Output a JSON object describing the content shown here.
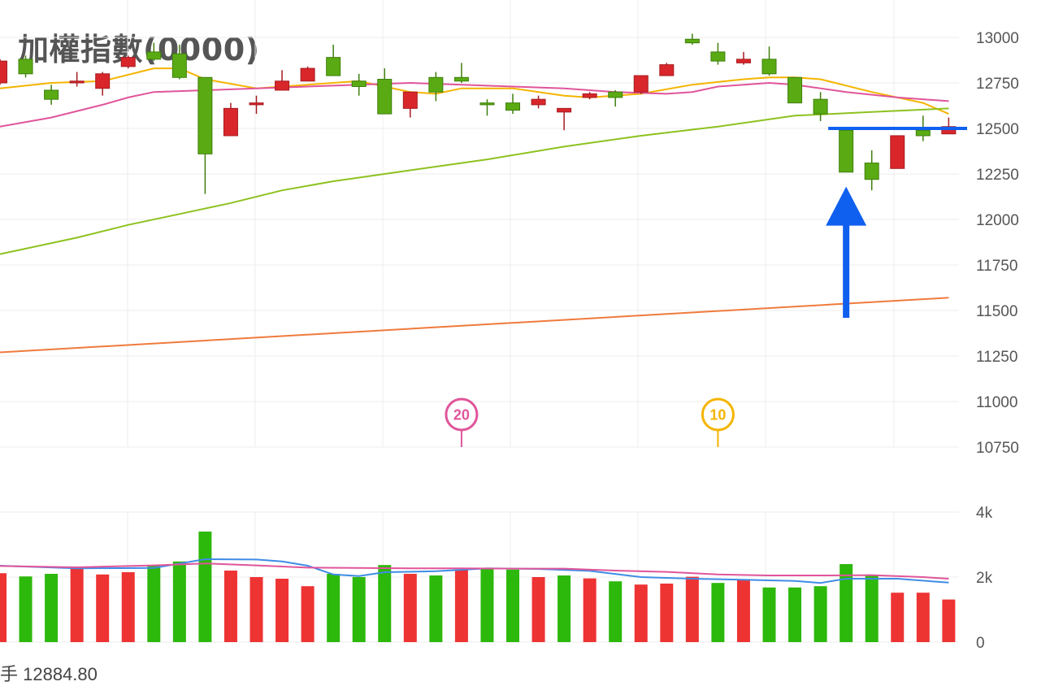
{
  "title": "加權指數(0000)",
  "footer_partial_label": "手 12884.80",
  "colors": {
    "up": "#d9262b",
    "down": "#5aab13",
    "vol_up": "#ee3333",
    "vol_down": "#2db80c",
    "ma_yellow": "#f4b400",
    "ma_pink": "#e0559a",
    "ma_green": "#8dc21f",
    "ma_orange": "#f07a3c",
    "vol_ma_blue": "#3f8ce6",
    "vol_ma_pink": "#e0559a",
    "annotation": "#1060f0",
    "grid": "#ececec",
    "tick": "#555555"
  },
  "chart_data": [
    {
      "type": "candlestick",
      "title": "加權指數(0000)",
      "ylim": [
        10750,
        13000
      ],
      "yticks": [
        "13000",
        "12750",
        "12500",
        "12250",
        "12000",
        "11750",
        "11500",
        "11250",
        "11000",
        "10750"
      ],
      "grid": true,
      "candles": [
        {
          "o": 12750,
          "h": 12880,
          "l": 12740,
          "c": 12870,
          "dir": "up"
        },
        {
          "o": 12880,
          "h": 12900,
          "l": 12780,
          "c": 12800,
          "dir": "down"
        },
        {
          "o": 12710,
          "h": 12740,
          "l": 12630,
          "c": 12660,
          "dir": "down"
        },
        {
          "o": 12750,
          "h": 12810,
          "l": 12730,
          "c": 12760,
          "dir": "up"
        },
        {
          "o": 12720,
          "h": 12810,
          "l": 12680,
          "c": 12800,
          "dir": "up"
        },
        {
          "o": 12840,
          "h": 12900,
          "l": 12830,
          "c": 12890,
          "dir": "up"
        },
        {
          "o": 12920,
          "h": 12970,
          "l": 12870,
          "c": 12880,
          "dir": "down"
        },
        {
          "o": 12910,
          "h": 12960,
          "l": 12770,
          "c": 12780,
          "dir": "down"
        },
        {
          "o": 12780,
          "h": 12780,
          "l": 12140,
          "c": 12360,
          "dir": "down"
        },
        {
          "o": 12460,
          "h": 12640,
          "l": 12460,
          "c": 12610,
          "dir": "up"
        },
        {
          "o": 12630,
          "h": 12680,
          "l": 12580,
          "c": 12640,
          "dir": "up"
        },
        {
          "o": 12710,
          "h": 12820,
          "l": 12710,
          "c": 12760,
          "dir": "up"
        },
        {
          "o": 12760,
          "h": 12840,
          "l": 12760,
          "c": 12830,
          "dir": "up"
        },
        {
          "o": 12890,
          "h": 12960,
          "l": 12790,
          "c": 12790,
          "dir": "down"
        },
        {
          "o": 12760,
          "h": 12800,
          "l": 12680,
          "c": 12730,
          "dir": "down"
        },
        {
          "o": 12770,
          "h": 12830,
          "l": 12580,
          "c": 12580,
          "dir": "down"
        },
        {
          "o": 12610,
          "h": 12700,
          "l": 12560,
          "c": 12700,
          "dir": "up"
        },
        {
          "o": 12780,
          "h": 12810,
          "l": 12650,
          "c": 12700,
          "dir": "down"
        },
        {
          "o": 12780,
          "h": 12860,
          "l": 12750,
          "c": 12760,
          "dir": "down"
        },
        {
          "o": 12640,
          "h": 12660,
          "l": 12570,
          "c": 12630,
          "dir": "down"
        },
        {
          "o": 12640,
          "h": 12690,
          "l": 12580,
          "c": 12600,
          "dir": "down"
        },
        {
          "o": 12630,
          "h": 12680,
          "l": 12610,
          "c": 12660,
          "dir": "up"
        },
        {
          "o": 12590,
          "h": 12610,
          "l": 12490,
          "c": 12610,
          "dir": "up"
        },
        {
          "o": 12670,
          "h": 12700,
          "l": 12660,
          "c": 12690,
          "dir": "up"
        },
        {
          "o": 12700,
          "h": 12710,
          "l": 12620,
          "c": 12670,
          "dir": "down"
        },
        {
          "o": 12700,
          "h": 12790,
          "l": 12690,
          "c": 12790,
          "dir": "up"
        },
        {
          "o": 12790,
          "h": 12860,
          "l": 12790,
          "c": 12850,
          "dir": "up"
        },
        {
          "o": 12990,
          "h": 13020,
          "l": 12960,
          "c": 12970,
          "dir": "down"
        },
        {
          "o": 12920,
          "h": 12970,
          "l": 12850,
          "c": 12870,
          "dir": "down"
        },
        {
          "o": 12860,
          "h": 12920,
          "l": 12850,
          "c": 12880,
          "dir": "up"
        },
        {
          "o": 12880,
          "h": 12950,
          "l": 12790,
          "c": 12800,
          "dir": "down"
        },
        {
          "o": 12780,
          "h": 12780,
          "l": 12640,
          "c": 12640,
          "dir": "down"
        },
        {
          "o": 12660,
          "h": 12700,
          "l": 12540,
          "c": 12580,
          "dir": "down"
        },
        {
          "o": 12490,
          "h": 12490,
          "l": 12260,
          "c": 12260,
          "dir": "down"
        },
        {
          "o": 12310,
          "h": 12380,
          "l": 12160,
          "c": 12220,
          "dir": "down"
        },
        {
          "o": 12280,
          "h": 12460,
          "l": 12280,
          "c": 12460,
          "dir": "up"
        },
        {
          "o": 12460,
          "h": 12570,
          "l": 12430,
          "c": 12490,
          "dir": "down"
        },
        {
          "o": 12470,
          "h": 12560,
          "l": 12470,
          "c": 12510,
          "dir": "up"
        }
      ],
      "moving_averages": [
        {
          "color_key": "ma_yellow",
          "points": [
            [
              0,
              12720
            ],
            [
              2,
              12750
            ],
            [
              4,
              12760
            ],
            [
              6,
              12830
            ],
            [
              7,
              12830
            ],
            [
              8,
              12770
            ],
            [
              10,
              12720
            ],
            [
              12,
              12740
            ],
            [
              14,
              12760
            ],
            [
              16,
              12700
            ],
            [
              17,
              12690
            ],
            [
              18,
              12720
            ],
            [
              20,
              12720
            ],
            [
              22,
              12680
            ],
            [
              23,
              12670
            ],
            [
              25,
              12690
            ],
            [
              27,
              12740
            ],
            [
              29,
              12770
            ],
            [
              30,
              12780
            ],
            [
              31,
              12780
            ],
            [
              32,
              12770
            ],
            [
              34,
              12700
            ],
            [
              36,
              12640
            ],
            [
              37,
              12580
            ]
          ]
        },
        {
          "color_key": "ma_pink",
          "points": [
            [
              0,
              12510
            ],
            [
              2,
              12560
            ],
            [
              4,
              12630
            ],
            [
              5,
              12670
            ],
            [
              6,
              12700
            ],
            [
              8,
              12710
            ],
            [
              10,
              12720
            ],
            [
              12,
              12730
            ],
            [
              14,
              12740
            ],
            [
              16,
              12750
            ],
            [
              18,
              12740
            ],
            [
              20,
              12730
            ],
            [
              22,
              12720
            ],
            [
              24,
              12700
            ],
            [
              26,
              12690
            ],
            [
              27,
              12700
            ],
            [
              28,
              12730
            ],
            [
              30,
              12750
            ],
            [
              31,
              12740
            ],
            [
              33,
              12700
            ],
            [
              35,
              12670
            ],
            [
              37,
              12650
            ]
          ]
        },
        {
          "color_key": "ma_green",
          "points": [
            [
              0,
              11810
            ],
            [
              3,
              11900
            ],
            [
              5,
              11970
            ],
            [
              7,
              12030
            ],
            [
              9,
              12090
            ],
            [
              11,
              12160
            ],
            [
              13,
              12210
            ],
            [
              16,
              12270
            ],
            [
              19,
              12330
            ],
            [
              22,
              12400
            ],
            [
              25,
              12460
            ],
            [
              28,
              12510
            ],
            [
              31,
              12570
            ],
            [
              34,
              12590
            ],
            [
              37,
              12610
            ]
          ]
        },
        {
          "color_key": "ma_orange",
          "points": [
            [
              0,
              11270
            ],
            [
              37,
              11570
            ]
          ]
        }
      ],
      "annotations": {
        "horizontal_line_value": 12500,
        "arrow_tip_value": 12180,
        "arrow_tail_value": 11460,
        "arrow_at_candle": 33,
        "line_from_candle": 33
      },
      "markers": [
        {
          "label": "20",
          "color_key": "ma_pink",
          "at_candle": 18
        },
        {
          "label": "10",
          "color_key": "ma_yellow",
          "at_candle": 28
        }
      ]
    },
    {
      "type": "bar",
      "title": "",
      "ylim": [
        0,
        4000
      ],
      "yticks": [
        "4k",
        "2k",
        "0"
      ],
      "volumes": [
        {
          "v": 2120,
          "dir": "up"
        },
        {
          "v": 2020,
          "dir": "down"
        },
        {
          "v": 2100,
          "dir": "down"
        },
        {
          "v": 2270,
          "dir": "up"
        },
        {
          "v": 2080,
          "dir": "up"
        },
        {
          "v": 2150,
          "dir": "up"
        },
        {
          "v": 2370,
          "dir": "down"
        },
        {
          "v": 2480,
          "dir": "down"
        },
        {
          "v": 3400,
          "dir": "down"
        },
        {
          "v": 2200,
          "dir": "up"
        },
        {
          "v": 2000,
          "dir": "up"
        },
        {
          "v": 1950,
          "dir": "up"
        },
        {
          "v": 1720,
          "dir": "up"
        },
        {
          "v": 2100,
          "dir": "down"
        },
        {
          "v": 2000,
          "dir": "down"
        },
        {
          "v": 2370,
          "dir": "down"
        },
        {
          "v": 2100,
          "dir": "up"
        },
        {
          "v": 2050,
          "dir": "down"
        },
        {
          "v": 2220,
          "dir": "up"
        },
        {
          "v": 2270,
          "dir": "down"
        },
        {
          "v": 2230,
          "dir": "down"
        },
        {
          "v": 2000,
          "dir": "up"
        },
        {
          "v": 2050,
          "dir": "down"
        },
        {
          "v": 1960,
          "dir": "up"
        },
        {
          "v": 1870,
          "dir": "down"
        },
        {
          "v": 1770,
          "dir": "up"
        },
        {
          "v": 1800,
          "dir": "up"
        },
        {
          "v": 2010,
          "dir": "up"
        },
        {
          "v": 1820,
          "dir": "down"
        },
        {
          "v": 1920,
          "dir": "up"
        },
        {
          "v": 1680,
          "dir": "down"
        },
        {
          "v": 1680,
          "dir": "down"
        },
        {
          "v": 1720,
          "dir": "down"
        },
        {
          "v": 2400,
          "dir": "down"
        },
        {
          "v": 2060,
          "dir": "down"
        },
        {
          "v": 1520,
          "dir": "up"
        },
        {
          "v": 1520,
          "dir": "up"
        },
        {
          "v": 1310,
          "dir": "up"
        }
      ],
      "moving_averages": [
        {
          "color_key": "vol_ma_blue",
          "points": [
            [
              0,
              2350
            ],
            [
              3,
              2270
            ],
            [
              6,
              2280
            ],
            [
              8,
              2550
            ],
            [
              10,
              2540
            ],
            [
              11,
              2480
            ],
            [
              12,
              2350
            ],
            [
              13,
              2080
            ],
            [
              14,
              2030
            ],
            [
              15,
              2150
            ],
            [
              17,
              2180
            ],
            [
              19,
              2270
            ],
            [
              21,
              2250
            ],
            [
              23,
              2190
            ],
            [
              25,
              2000
            ],
            [
              27,
              1950
            ],
            [
              29,
              1920
            ],
            [
              31,
              1880
            ],
            [
              32,
              1820
            ],
            [
              33,
              1950
            ],
            [
              35,
              1950
            ],
            [
              37,
              1830
            ]
          ]
        },
        {
          "color_key": "vol_ma_pink",
          "points": [
            [
              0,
              2340
            ],
            [
              3,
              2300
            ],
            [
              6,
              2360
            ],
            [
              8,
              2420
            ],
            [
              10,
              2360
            ],
            [
              12,
              2290
            ],
            [
              14,
              2280
            ],
            [
              16,
              2270
            ],
            [
              18,
              2270
            ],
            [
              20,
              2260
            ],
            [
              22,
              2260
            ],
            [
              24,
              2200
            ],
            [
              26,
              2160
            ],
            [
              28,
              2080
            ],
            [
              30,
              2050
            ],
            [
              32,
              2050
            ],
            [
              34,
              2060
            ],
            [
              36,
              2000
            ],
            [
              37,
              1950
            ]
          ]
        }
      ]
    }
  ]
}
